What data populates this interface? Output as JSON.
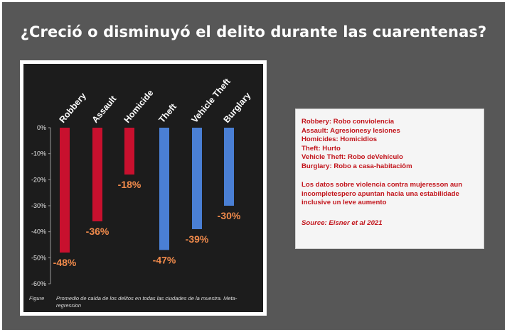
{
  "title": "¿Creció o disminuyó el delito durante las cuarentenas?",
  "chart_data": {
    "type": "bar",
    "categories": [
      "Robbery",
      "Assault",
      "Homicide",
      "Theft",
      "Vehicle Theft",
      "Burglary"
    ],
    "values": [
      -48,
      -36,
      -18,
      -47,
      -39,
      -30
    ],
    "data_labels": [
      "-48%",
      "-36%",
      "-18%",
      "-47%",
      "-39%",
      "-30%"
    ],
    "colors": [
      "#c8102e",
      "#c8102e",
      "#c8102e",
      "#4a7fd4",
      "#4a7fd4",
      "#4a7fd4"
    ],
    "ylim": [
      -60,
      0
    ],
    "yticks": [
      0,
      -10,
      -20,
      -30,
      -40,
      -50,
      -60
    ],
    "ytick_labels": [
      "0%",
      "-10%",
      "-20%",
      "-30%",
      "-40%",
      "-50%",
      "-60%"
    ],
    "label_color": "#f08a4b",
    "grid": false,
    "caption_label": "Figure",
    "caption": "Promedio de caída de los delitos en todas las ciudades de la muestra. Meta-regression"
  },
  "legend_box": {
    "lines": [
      "Robbery: Robo conviolencia",
      "Assault: Agresionesy lesiones",
      "Homicides: Homicidios",
      "Theft: Hurto",
      "Vehicle Theft: Robo deVehículo",
      "Burglary: Robo a casa-habitaciôm"
    ],
    "note": "Los datos sobre violencia contra mujeresson aun incompletespero apuntan hacia una estabilidade inclusive un leve aumento",
    "source": "Source: Eisner et al 2021"
  }
}
